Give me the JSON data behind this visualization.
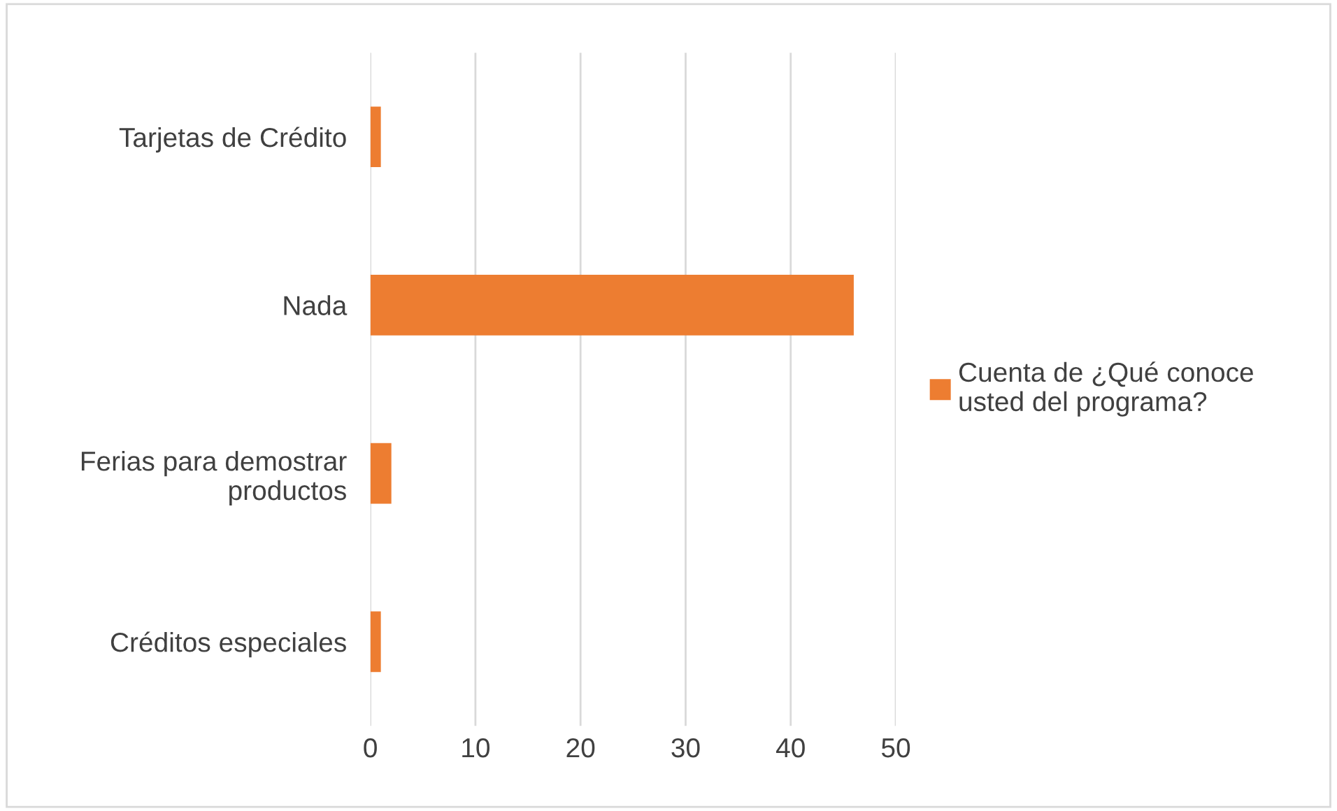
{
  "chart_data": {
    "type": "bar",
    "orientation": "horizontal",
    "categories": [
      "Tarjetas de Crédito",
      "Nada",
      "Ferias para demostrar\nproductos",
      "Créditos especiales"
    ],
    "series": [
      {
        "name": "Cuenta de ¿Qué conoce\nusted del programa?",
        "color": "#ed7d31",
        "values": [
          1,
          46,
          2,
          1
        ]
      }
    ],
    "xlim": [
      0,
      50
    ],
    "xticks": [
      0,
      10,
      20,
      30,
      40,
      50
    ],
    "grid": "x",
    "legend": "right"
  }
}
